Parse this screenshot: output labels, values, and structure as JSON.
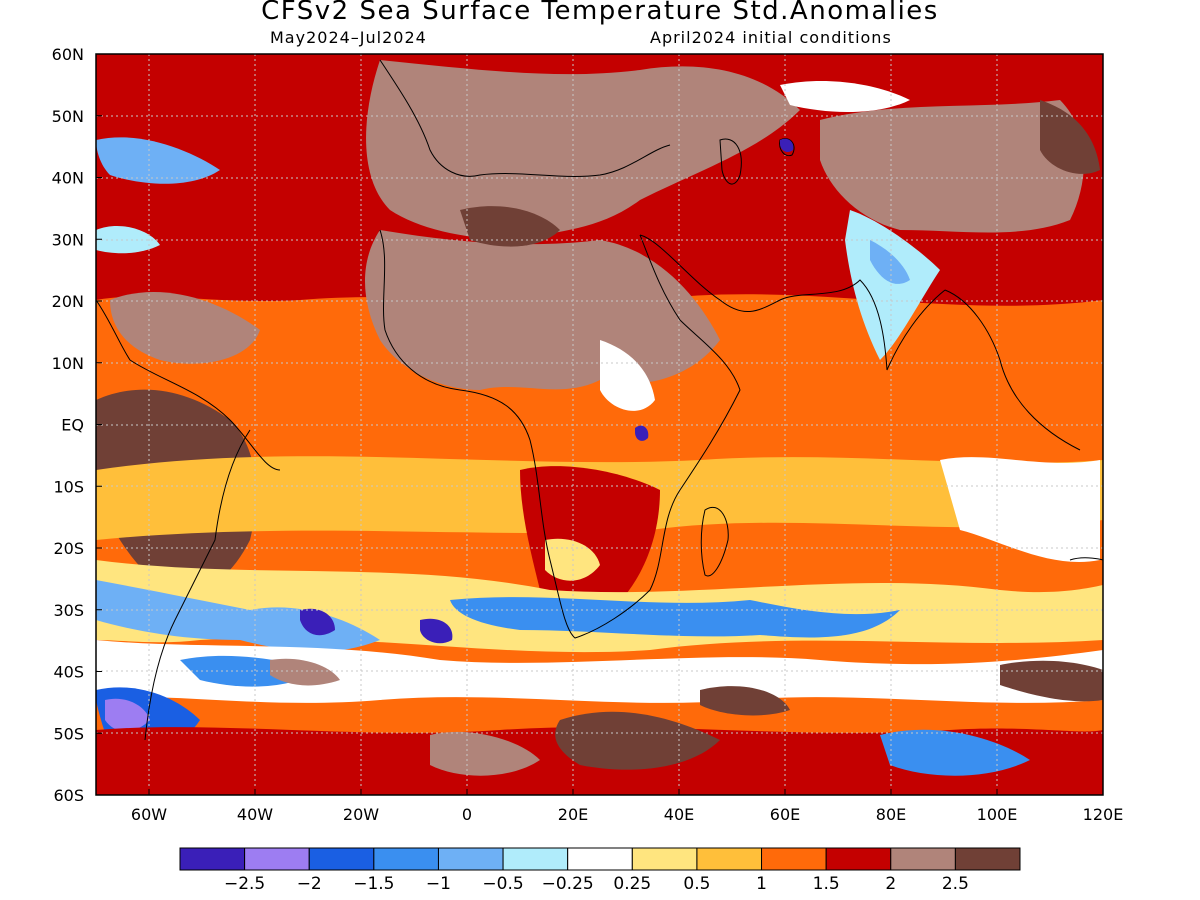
{
  "header": {
    "title": "CFSv2 Sea Surface Temperature Std.Anomalies",
    "period": "May2024–Jul2024",
    "init": "April2024 initial conditions"
  },
  "map": {
    "lat_labels": [
      "60N",
      "50N",
      "40N",
      "30N",
      "20N",
      "10N",
      "EQ",
      "10S",
      "20S",
      "30S",
      "40S",
      "50S",
      "60S"
    ],
    "lon_labels": [
      "60W",
      "40W",
      "20W",
      "0",
      "20E",
      "40E",
      "60E",
      "80E",
      "100E",
      "120E"
    ],
    "lon_range": [
      -70,
      120
    ],
    "lat_range": [
      -60,
      60
    ],
    "grid": true
  },
  "colorbar": {
    "colors": [
      "#3a1fb8",
      "#9d7df2",
      "#1a5fe3",
      "#3a8ff0",
      "#6eb0f5",
      "#b0ecfb",
      "#ffffff",
      "#ffe57f",
      "#ffbf3a",
      "#ff6a0a",
      "#c40000",
      "#b0847a",
      "#704036"
    ],
    "labels": [
      "−2.5",
      "−2",
      "−1.5",
      "−1",
      "−0.5",
      "−0.25",
      "0.25",
      "0.5",
      "1",
      "1.5",
      "2",
      "2.5"
    ]
  }
}
